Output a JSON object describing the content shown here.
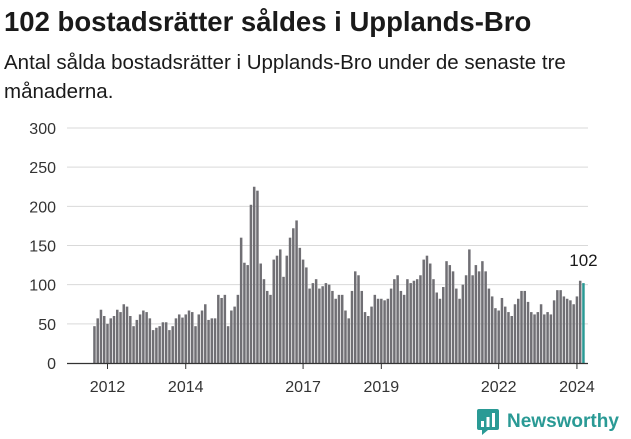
{
  "header": {
    "title": "102 bostadsrätter såldes i Upplands-Bro",
    "subtitle": "Antal sålda bostadsrätter i Upplands-Bro under de senaste tre månaderna."
  },
  "brand": {
    "name": "Newsworthy",
    "icon": "newsworthy-logo-icon",
    "color": "#2a9a95"
  },
  "colors": {
    "bar": "#706f74",
    "highlight": "#2a9a95",
    "grid": "#d9d9d9",
    "axis": "#333333"
  },
  "chart_data": {
    "type": "bar",
    "title": "102 bostadsrätter såldes i Upplands-Bro",
    "subtitle": "Antal sålda bostadsrätter i Upplands-Bro under de senaste tre månaderna.",
    "xlabel": "",
    "ylabel": "",
    "ylim": [
      0,
      300
    ],
    "yticks": [
      0,
      50,
      100,
      150,
      200,
      250,
      300
    ],
    "xticks": [
      "2012",
      "2014",
      "2017",
      "2019",
      "2022",
      "2024"
    ],
    "start": "2011-09",
    "frequency": "monthly",
    "grid": true,
    "annotation": {
      "text": "102",
      "target": "last-bar"
    },
    "values": [
      47,
      57,
      68,
      60,
      50,
      57,
      60,
      68,
      65,
      75,
      72,
      60,
      47,
      55,
      62,
      67,
      65,
      57,
      42,
      45,
      47,
      52,
      52,
      42,
      47,
      57,
      62,
      58,
      62,
      67,
      65,
      47,
      62,
      67,
      75,
      55,
      57,
      57,
      87,
      83,
      87,
      47,
      67,
      72,
      87,
      160,
      128,
      125,
      202,
      225,
      220,
      127,
      107,
      92,
      87,
      132,
      137,
      145,
      110,
      137,
      160,
      172,
      182,
      147,
      132,
      122,
      95,
      102,
      107,
      95,
      98,
      102,
      100,
      92,
      82,
      87,
      87,
      67,
      57,
      92,
      117,
      112,
      92,
      65,
      60,
      72,
      87,
      82,
      82,
      80,
      82,
      95,
      107,
      112,
      92,
      87,
      107,
      102,
      105,
      107,
      112,
      132,
      137,
      127,
      107,
      90,
      82,
      97,
      130,
      125,
      117,
      95,
      82,
      100,
      112,
      145,
      112,
      125,
      117,
      130,
      117,
      95,
      85,
      70,
      67,
      83,
      72,
      65,
      60,
      75,
      82,
      92,
      92,
      78,
      65,
      62,
      65,
      75,
      62,
      65,
      62,
      80,
      93,
      93,
      85,
      82,
      80,
      75,
      85,
      105,
      102
    ]
  }
}
